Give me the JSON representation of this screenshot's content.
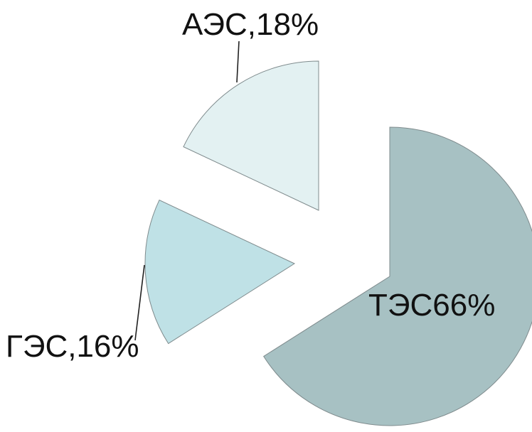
{
  "chart_data": {
    "type": "pie",
    "title": "",
    "slices": [
      {
        "label": "ТЭС66%",
        "category": "ТЭС",
        "value": 66,
        "color": "#a7c1c3"
      },
      {
        "label": "ГЭС,16%",
        "category": "ГЭС",
        "value": 16,
        "color": "#bfe1e6"
      },
      {
        "label": "АЭС,18%",
        "category": "АЭС",
        "value": 18,
        "color": "#e3f1f2"
      }
    ],
    "exploded": true,
    "legend": false
  }
}
